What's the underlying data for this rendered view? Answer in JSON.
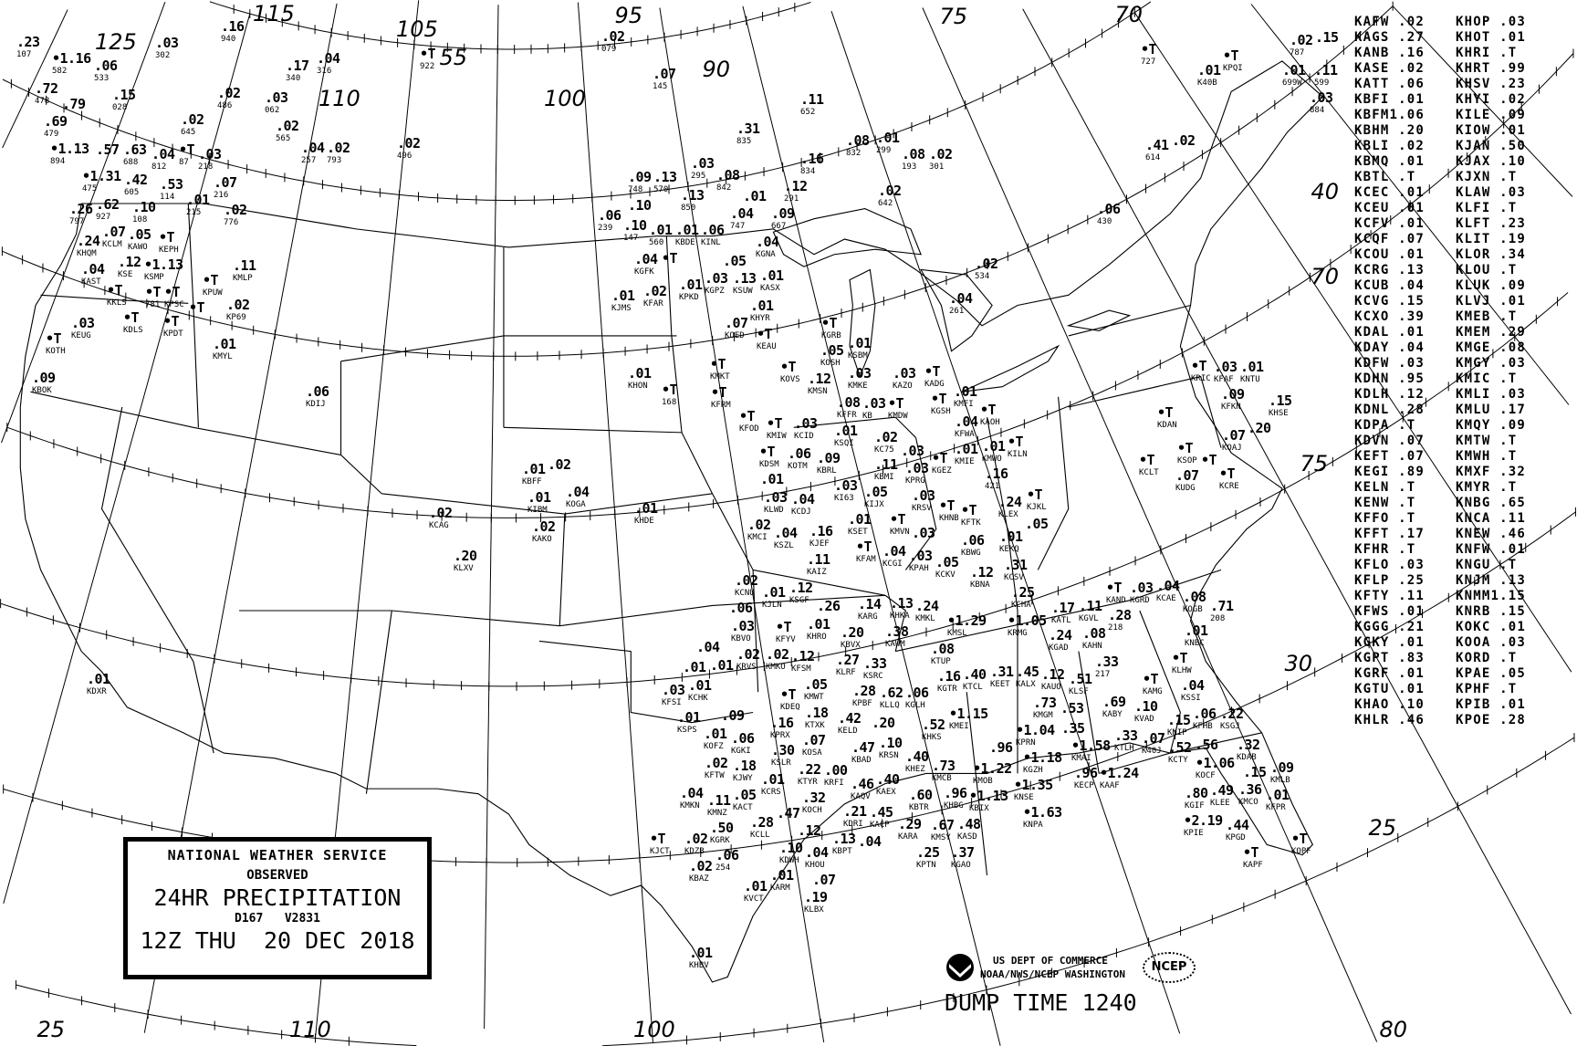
{
  "legend": {
    "agency": "NATIONAL WEATHER SERVICE",
    "observed": "OBSERVED",
    "product": "24HR PRECIPITATION",
    "codes": "D167   V2831",
    "valid": "12Z THU  20 DEC 2018"
  },
  "footer": {
    "dept": "US DEPT OF COMMERCE",
    "office": "NOAA/NWS/NCEP WASHINGTON",
    "ncep_logo": "NCEP",
    "noaa_logo": "noaa-logo-icon",
    "dump_time": "DUMP TIME 1240"
  },
  "graticule_labels": [
    "115",
    "125",
    "105",
    "55",
    "110",
    "95",
    "100",
    "90",
    "75",
    "70",
    "40",
    "70",
    "75",
    "30",
    "25",
    "25",
    "110",
    "100",
    "80"
  ],
  "station_table": {
    "left": [
      [
        "KAFW",
        ".02"
      ],
      [
        "KAGS",
        ".27"
      ],
      [
        "KANB",
        ".16"
      ],
      [
        "KASE",
        ".02"
      ],
      [
        "KATT",
        ".06"
      ],
      [
        "KBFI",
        ".01"
      ],
      [
        "KBFM",
        "1.06"
      ],
      [
        "KBHM",
        ".20"
      ],
      [
        "KBLI",
        ".02"
      ],
      [
        "KBMQ",
        ".01"
      ],
      [
        "KBTL",
        ".T"
      ],
      [
        "KCEC",
        ".01"
      ],
      [
        "KCEU",
        ".01"
      ],
      [
        "KCFV",
        ".01"
      ],
      [
        "KCQF",
        ".07"
      ],
      [
        "KCOU",
        ".01"
      ],
      [
        "KCRG",
        ".13"
      ],
      [
        "KCUB",
        ".04"
      ],
      [
        "KCVG",
        ".15"
      ],
      [
        "KCXO",
        ".39"
      ],
      [
        "KDAL",
        ".01"
      ],
      [
        "KDAY",
        ".04"
      ],
      [
        "KDFW",
        ".03"
      ],
      [
        "KDHN",
        ".95"
      ],
      [
        "KDLH",
        ".12"
      ],
      [
        "KDNL",
        ".28"
      ],
      [
        "KDPA",
        ".T"
      ],
      [
        "KDVN",
        ".07"
      ],
      [
        "KEFT",
        ".07"
      ],
      [
        "KEGI",
        ".89"
      ],
      [
        "KELN",
        ".T"
      ],
      [
        "KENW",
        ".T"
      ],
      [
        "KFFO",
        ".T"
      ],
      [
        "KFFT",
        ".17"
      ],
      [
        "KFHR",
        ".T"
      ],
      [
        "KFLO",
        ".03"
      ],
      [
        "KFLP",
        ".25"
      ],
      [
        "KFTY",
        ".11"
      ],
      [
        "KFWS",
        ".01"
      ],
      [
        "KGGG",
        ".21"
      ],
      [
        "KGKY",
        ".01"
      ],
      [
        "KGPT",
        ".83"
      ],
      [
        "KGRF",
        ".01"
      ],
      [
        "KGTU",
        ".01"
      ],
      [
        "KHAO",
        ".10"
      ],
      [
        "KHLR",
        ".46"
      ]
    ],
    "right": [
      [
        "KHOP",
        ".03"
      ],
      [
        "KHOT",
        ".01"
      ],
      [
        "KHRI",
        ".T"
      ],
      [
        "KHRT",
        ".99"
      ],
      [
        "KHSV",
        ".23"
      ],
      [
        "KHYI",
        ".02"
      ],
      [
        "KILE",
        ".09"
      ],
      [
        "KIOW",
        ".01"
      ],
      [
        "KJAN",
        ".50"
      ],
      [
        "KJAX",
        ".10"
      ],
      [
        "KJXN",
        ".T"
      ],
      [
        "KLAW",
        ".03"
      ],
      [
        "KLFI",
        ".T"
      ],
      [
        "KLFT",
        ".23"
      ],
      [
        "KLIT",
        ".19"
      ],
      [
        "KLOR",
        ".34"
      ],
      [
        "KLOU",
        ".T"
      ],
      [
        "KLUK",
        ".09"
      ],
      [
        "KLVJ",
        ".01"
      ],
      [
        "KMEB",
        ".T"
      ],
      [
        "KMEM",
        ".29"
      ],
      [
        "KMGE",
        ".08"
      ],
      [
        "KMGY",
        ".03"
      ],
      [
        "KMIC",
        ".T"
      ],
      [
        "KMLI",
        ".03"
      ],
      [
        "KMLU",
        ".17"
      ],
      [
        "KMQY",
        ".09"
      ],
      [
        "KMTW",
        ".T"
      ],
      [
        "KMWH",
        ".T"
      ],
      [
        "KMXF",
        ".32"
      ],
      [
        "KMYR",
        ".T"
      ],
      [
        "KNBG",
        ".65"
      ],
      [
        "KNCA",
        ".11"
      ],
      [
        "KNEW",
        ".46"
      ],
      [
        "KNFW",
        ".01"
      ],
      [
        "KNGU",
        ".T"
      ],
      [
        "KNJM",
        ".13"
      ],
      [
        "KNMM",
        "1.15"
      ],
      [
        "KNRB",
        ".15"
      ],
      [
        "KOKC",
        ".01"
      ],
      [
        "KOOA",
        ".03"
      ],
      [
        "KORD",
        ".T"
      ],
      [
        "KPAE",
        ".05"
      ],
      [
        "KPHF",
        ".T"
      ],
      [
        "KPIB",
        ".01"
      ],
      [
        "KPOE",
        ".28"
      ]
    ]
  },
  "stations": [
    [
      "107",
      ".23"
    ],
    [
      "582",
      "1.16"
    ],
    [
      "533",
      ".06"
    ],
    [
      "302",
      ".03"
    ],
    [
      "940",
      ".16"
    ],
    [
      "316",
      ".04"
    ],
    [
      "340",
      ".17"
    ],
    [
      "922",
      "T"
    ],
    [
      "478",
      ".72"
    ],
    [
      "",
      ".79"
    ],
    [
      "479",
      ".69"
    ],
    [
      "028",
      ".15"
    ],
    [
      "486",
      ".02"
    ],
    [
      "062",
      ".03"
    ],
    [
      "565",
      ".02"
    ],
    [
      "645",
      ".02"
    ],
    [
      "894",
      "1.13"
    ],
    [
      "",
      ".57"
    ],
    [
      "688",
      ".63"
    ],
    [
      "475",
      "1.31"
    ],
    [
      "605",
      ".42"
    ],
    [
      "812",
      ".04"
    ],
    [
      "87",
      "T"
    ],
    [
      "218",
      ".03"
    ],
    [
      "257",
      ".04"
    ],
    [
      "793",
      ".02"
    ],
    [
      "496",
      ".02"
    ],
    [
      "216",
      ".07"
    ],
    [
      "927",
      ".62"
    ],
    [
      "108",
      ".10"
    ],
    [
      "114",
      ".53"
    ],
    [
      "215",
      ".01"
    ],
    [
      "776",
      ".02"
    ],
    [
      "797",
      ".26"
    ],
    [
      "KCLM",
      ".07"
    ],
    [
      "KAWO",
      ".05"
    ],
    [
      "KHQM",
      ".24"
    ],
    [
      "KSE",
      ".12"
    ],
    [
      "KSMP",
      "1.13"
    ],
    [
      "KAST",
      ".04"
    ],
    [
      "KKLS",
      "T"
    ],
    [
      "KEPH",
      "T"
    ],
    [
      "781",
      "T"
    ],
    [
      "KMLP",
      ".11"
    ],
    [
      "KPUW",
      "T"
    ],
    [
      "KPSC",
      "T"
    ],
    [
      "",
      "T"
    ],
    [
      "KPDT",
      "T"
    ],
    [
      "KDLS",
      "T"
    ],
    [
      "KP69",
      ".02"
    ],
    [
      "KEUG",
      ".03"
    ],
    [
      "KOTH",
      "T"
    ],
    [
      "KMYL",
      ".01"
    ],
    [
      "KBOK",
      ".09"
    ],
    [
      "KDIJ",
      ".06"
    ],
    [
      "079",
      ".02"
    ],
    [
      "145",
      ".07"
    ],
    [
      "652",
      ".11"
    ],
    [
      "835",
      ".31"
    ],
    [
      "832",
      ".08"
    ],
    [
      "299",
      ".01"
    ],
    [
      "193",
      ".08"
    ],
    [
      "301",
      ".02"
    ],
    [
      "834",
      ".16"
    ],
    [
      "295",
      ".03"
    ],
    [
      "842",
      ".08"
    ],
    [
      "748",
      ".09"
    ],
    [
      "570",
      ".13"
    ],
    [
      "850",
      ".13"
    ],
    [
      "",
      ".10"
    ],
    [
      "239",
      ".06"
    ],
    [
      "147",
      ".10"
    ],
    [
      "560",
      ".01"
    ],
    [
      "KBDE",
      ".01"
    ],
    [
      "KINL",
      ".06"
    ],
    [
      "747",
      ".04"
    ],
    [
      "",
      ".01"
    ],
    [
      "667",
      ".09"
    ],
    [
      "291",
      ".12"
    ],
    [
      "642",
      ".02"
    ],
    [
      "KGNA",
      ".04"
    ],
    [
      "KGFK",
      ".04"
    ],
    [
      "",
      "T"
    ],
    [
      "",
      ".05"
    ],
    [
      "KGPZ",
      ".03"
    ],
    [
      "KSUW",
      ".13"
    ],
    [
      "KASX",
      ".01"
    ],
    [
      "KPKD",
      ".01"
    ],
    [
      "KFAR",
      ".02"
    ],
    [
      "KJMS",
      ".01"
    ],
    [
      "KHYR",
      ".01"
    ],
    [
      "KOED",
      ".07"
    ],
    [
      "KEAU",
      "T"
    ],
    [
      "KGRB",
      "T"
    ],
    [
      "KOSH",
      ".05"
    ],
    [
      "KSBM",
      ".01"
    ],
    [
      "KMKE",
      ".03"
    ],
    [
      "KMSN",
      ".12"
    ],
    [
      "KOVS",
      "T"
    ],
    [
      "KMKT",
      "T"
    ],
    [
      "KFRM",
      "T"
    ],
    [
      "KHON",
      ".01"
    ],
    [
      "168",
      "T"
    ],
    [
      "KAZO",
      ".03"
    ],
    [
      "KADG",
      "T"
    ],
    [
      "534",
      ".02"
    ],
    [
      "261",
      ".04"
    ],
    [
      "KFFR",
      ".08"
    ],
    [
      "KB",
      ".03"
    ],
    [
      "KMDW",
      "T"
    ],
    [
      "KFOD",
      "T"
    ],
    [
      "KMIW",
      "T"
    ],
    [
      "KCID",
      ".03"
    ],
    [
      "KSQI",
      ".01"
    ],
    [
      "KC75",
      ".02"
    ],
    [
      "KBMI",
      ".11"
    ],
    [
      "",
      ".03"
    ],
    [
      "KPRG",
      ".03"
    ],
    [
      "KDSM",
      "T"
    ],
    [
      "",
      ".01"
    ],
    [
      "KOTM",
      ".06"
    ],
    [
      "KBRL",
      ".09"
    ],
    [
      "KLWD",
      ".03"
    ],
    [
      "KI63",
      ".03"
    ],
    [
      "KIJX",
      ".05"
    ],
    [
      "KRSV",
      ".03"
    ],
    [
      "KCDJ",
      ".04"
    ],
    [
      "KMCI",
      ".02"
    ],
    [
      "KSET",
      ".01"
    ],
    [
      "KMVN",
      "T"
    ],
    [
      "",
      ".03"
    ],
    [
      "KSZL",
      ".04"
    ],
    [
      "KJEF",
      ".16"
    ],
    [
      "KAIZ",
      ".11"
    ],
    [
      "KFAM",
      "T"
    ],
    [
      "KCGI",
      ".04"
    ],
    [
      "KPAH",
      ".03"
    ],
    [
      "KGSH",
      "T"
    ],
    [
      "KMFI",
      ".01"
    ],
    [
      "KFWA",
      ".04"
    ],
    [
      "KAOH",
      "T"
    ],
    [
      "KMIE",
      ".01"
    ],
    [
      "KGEZ",
      "T"
    ],
    [
      "KMWO",
      ".01"
    ],
    [
      "KILN",
      "T"
    ],
    [
      "421",
      ".16"
    ],
    [
      "KHNB",
      "T"
    ],
    [
      "KFTK",
      "T"
    ],
    [
      "KLEX",
      ".24"
    ],
    [
      "KJKL",
      "T"
    ],
    [
      "",
      ".05"
    ],
    [
      "KEKQ",
      ".01"
    ],
    [
      "KBWG",
      ".06"
    ],
    [
      "KCKV",
      ".05"
    ],
    [
      "KBNA",
      ".12"
    ],
    [
      "KCSV",
      ".31"
    ],
    [
      "KCNU",
      ".02"
    ],
    [
      "",
      ".06"
    ],
    [
      "KJLN",
      ".01"
    ],
    [
      "KSGF",
      ".12"
    ],
    [
      "KBVO",
      ".03"
    ],
    [
      "",
      ".26"
    ],
    [
      "KHRO",
      ".01"
    ],
    [
      "KARG",
      ".14"
    ],
    [
      "KHKA",
      ".13"
    ],
    [
      "KMKL",
      ".24"
    ],
    [
      "KBVX",
      ".20"
    ],
    [
      "KFYV",
      "T"
    ],
    [
      "KRVS",
      ".02"
    ],
    [
      "KMKO",
      ".02"
    ],
    [
      "KFSM",
      ".12"
    ],
    [
      "",
      ".04"
    ],
    [
      "",
      ".01"
    ],
    [
      "",
      ".01"
    ],
    [
      "KCHK",
      ".01"
    ],
    [
      "KFSI",
      ".03"
    ],
    [
      "KAWM",
      ".38"
    ],
    [
      "KLRF",
      ".27"
    ],
    [
      "KSRC",
      ".33"
    ],
    [
      "KPBF",
      ".28"
    ],
    [
      "KMWT",
      ".05"
    ],
    [
      "KLLQ",
      ".62"
    ],
    [
      "KGLH",
      ".06"
    ],
    [
      "KDEQ",
      "T"
    ],
    [
      "KTUP",
      ".08"
    ],
    [
      "KMSL",
      "1.29"
    ],
    [
      "KGTR",
      ".16"
    ],
    [
      "KTCL",
      ".40"
    ],
    [
      "KEET",
      ".31"
    ],
    [
      "KALX",
      ".45"
    ],
    [
      "KAUO",
      ".12"
    ],
    [
      "KLSF",
      ".51"
    ],
    [
      "KCHA",
      ".25"
    ],
    [
      "KRMG",
      "1.05"
    ],
    [
      "KGAD",
      ".24"
    ],
    [
      "KATL",
      ".17"
    ],
    [
      "KGVL",
      ".11"
    ],
    [
      "KAHN",
      ".08"
    ],
    [
      "218",
      ".28"
    ],
    [
      "217",
      ".33"
    ],
    [
      "KAND",
      "T"
    ],
    [
      "KGRD",
      ".03"
    ],
    [
      "KCAE",
      ".04"
    ],
    [
      "KOGB",
      ".08"
    ],
    [
      "208",
      ".71"
    ],
    [
      "KNBC",
      ".01"
    ],
    [
      "KLHW",
      "T"
    ],
    [
      "KMGM",
      ".73"
    ],
    [
      "KABY",
      ".69"
    ],
    [
      "KAMG",
      "T"
    ],
    [
      "KSSI",
      ".04"
    ],
    [
      "KFHB",
      ".06"
    ],
    [
      "KNIP",
      ".15"
    ],
    [
      "KSGJ",
      ".22"
    ],
    [
      "KVAD",
      ".10"
    ],
    [
      "",
      ".53"
    ],
    [
      "KPRN",
      "1.04"
    ],
    [
      "",
      ".35"
    ],
    [
      "KGZH",
      "1.18"
    ],
    [
      "KMAI",
      "1.58"
    ],
    [
      "KTLH",
      ".33"
    ],
    [
      "K40J",
      ".07"
    ],
    [
      "KCTY",
      ".52"
    ],
    [
      "",
      ".56"
    ],
    [
      "KOCF",
      "1.06"
    ],
    [
      "KLEE",
      ".49"
    ],
    [
      "KDAB",
      ".32"
    ],
    [
      "",
      ".15"
    ],
    [
      "KMCO",
      ".36"
    ],
    [
      "KMLB",
      ".09"
    ],
    [
      "KGIF",
      ".80"
    ],
    [
      "KFPR",
      ".01"
    ],
    [
      "KPIE",
      "2.19"
    ],
    [
      "KPGD",
      ".44"
    ],
    [
      "KAPF",
      "T"
    ],
    [
      "KOPF",
      "T"
    ],
    [
      "",
      ".96"
    ],
    [
      "KNSE",
      "1.35"
    ],
    [
      "KECP",
      ".96"
    ],
    [
      "KNPA",
      "1.63"
    ],
    [
      "KMOB",
      "1.22"
    ],
    [
      "KAAF",
      "1.24"
    ],
    [
      "KBIX",
      "1.13"
    ],
    [
      "KSPS",
      ".01"
    ],
    [
      "",
      ".09"
    ],
    [
      "KPRX",
      ".16"
    ],
    [
      "KTXK",
      ".18"
    ],
    [
      "KELD",
      ".42"
    ],
    [
      "",
      ".20"
    ],
    [
      "KOFZ",
      ".01"
    ],
    [
      "KGKI",
      ".06"
    ],
    [
      "KSLR",
      ".30"
    ],
    [
      "KOSA",
      ".07"
    ],
    [
      "KFTW",
      ".02"
    ],
    [
      "KJWY",
      ".18"
    ],
    [
      "KCRS",
      ".01"
    ],
    [
      "KTYR",
      ".22"
    ],
    [
      "KRFI",
      ".00"
    ],
    [
      "KBAD",
      ".47"
    ],
    [
      "KRSN",
      ".10"
    ],
    [
      "KOCH",
      ".32"
    ],
    [
      "KAQV",
      ".46"
    ],
    [
      "KAEX",
      ".40"
    ],
    [
      "KMKN",
      ".04"
    ],
    [
      "KMNZ",
      ".11"
    ],
    [
      "KACT",
      ".05"
    ],
    [
      "KDRI",
      ".21"
    ],
    [
      "KACP",
      ".45"
    ],
    [
      "KGRK",
      ".50"
    ],
    [
      "KCLL",
      ".28"
    ],
    [
      "",
      ".47"
    ],
    [
      "",
      ".12"
    ],
    [
      "KJCT",
      "T"
    ],
    [
      "KDZB",
      ".02"
    ],
    [
      "254",
      ".06"
    ],
    [
      "KDWH",
      ".10"
    ],
    [
      "KBPT",
      ".13"
    ],
    [
      "",
      ".04"
    ],
    [
      "KHOU",
      ".04"
    ],
    [
      "",
      ".07"
    ],
    [
      "KARM",
      ".01"
    ],
    [
      "KLBX",
      ".19"
    ],
    [
      "KBAZ",
      ".02"
    ],
    [
      "KVCT",
      ".01"
    ],
    [
      "KHBV",
      ".01"
    ],
    [
      "KHKS",
      ".52"
    ],
    [
      "KMEI",
      "1.15"
    ],
    [
      "KHEZ",
      ".40"
    ],
    [
      "KMCB",
      ".73"
    ],
    [
      "KHBG",
      ".96"
    ],
    [
      "KBTR",
      ".60"
    ],
    [
      "KASD",
      ".48"
    ],
    [
      "KMSY",
      ".67"
    ],
    [
      "KARA",
      ".29"
    ],
    [
      "KPTN",
      ".25"
    ],
    [
      "KGAO",
      ".37"
    ],
    [
      "727",
      "T"
    ],
    [
      "KPQI",
      "T"
    ],
    [
      "K40B",
      ".01"
    ],
    [
      "787",
      ".02"
    ],
    [
      "",
      ".15"
    ],
    [
      "699W",
      ".01"
    ],
    [
      "599",
      ".11"
    ],
    [
      "884",
      ".03"
    ],
    [
      "614",
      ".41"
    ],
    [
      "",
      ".02"
    ],
    [
      "430",
      ".06"
    ],
    [
      "KRIC",
      "T"
    ],
    [
      "KFAF",
      ".03"
    ],
    [
      "KNTU",
      ".01"
    ],
    [
      "KFKN",
      ".09"
    ],
    [
      "KHSE",
      ".15"
    ],
    [
      "KDAN",
      "T"
    ],
    [
      "",
      ".20"
    ],
    [
      "KOAJ",
      ".07"
    ],
    [
      "KSOP",
      "T"
    ],
    [
      "KCLT",
      "T"
    ],
    [
      "",
      "T"
    ],
    [
      "KUDG",
      ".07"
    ],
    [
      "KCRE",
      "T"
    ],
    [
      "KBFF",
      ".01"
    ],
    [
      "",
      ".02"
    ],
    [
      "KIBM",
      ".01"
    ],
    [
      "KOGA",
      ".04"
    ],
    [
      "KAKO",
      ".02"
    ],
    [
      "KHDE",
      ".01"
    ],
    [
      "KCAG",
      ".02"
    ],
    [
      "KLXV",
      ".20"
    ],
    [
      "KDXR",
      ".01"
    ]
  ]
}
